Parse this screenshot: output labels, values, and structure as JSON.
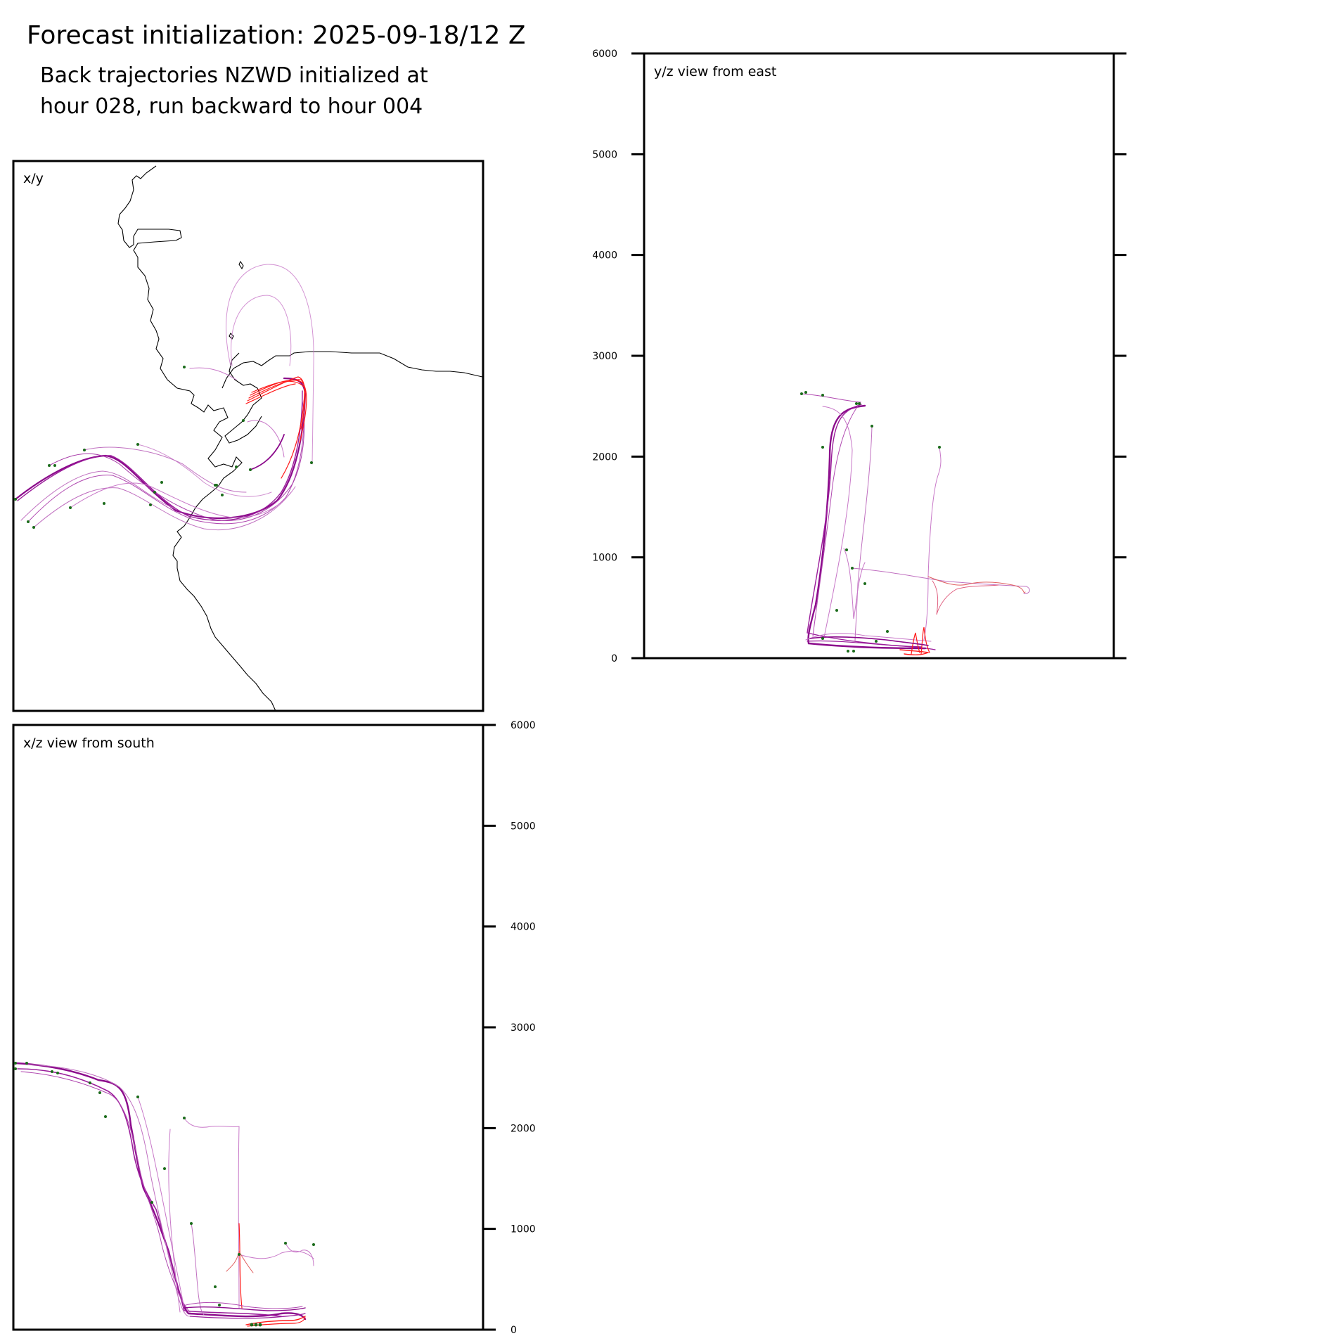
{
  "header": {
    "title": "Forecast initialization: 2025-09-18/12 Z",
    "subtitle_line1": "Back trajectories NZWD initialized at",
    "subtitle_line2": "hour 028, run backward to hour 004"
  },
  "colors": {
    "trajectory_late": "#8b0a8b",
    "trajectory_light": "#c878c8",
    "trajectory_early": "#ff1a1a",
    "start_marker": "#1a6b1a",
    "coastline": "#000000"
  },
  "chart_data": [
    {
      "panel": "x/y",
      "type": "line",
      "label": "x/y",
      "content": "back trajectories over coastline map",
      "grid": false,
      "ticks": []
    },
    {
      "panel": "y/z",
      "type": "line",
      "label": "y/z view from east",
      "ylim": [
        0,
        6000
      ],
      "yticks": [
        "0",
        "1000",
        "2000",
        "3000",
        "4000",
        "5000",
        "6000"
      ],
      "tick_side": "left",
      "grid": false
    },
    {
      "panel": "x/z",
      "type": "line",
      "label": "x/z view from south",
      "ylim": [
        0,
        6000
      ],
      "yticks": [
        "0",
        "1000",
        "2000",
        "3000",
        "4000",
        "5000",
        "6000"
      ],
      "tick_side": "right",
      "grid": false
    }
  ]
}
